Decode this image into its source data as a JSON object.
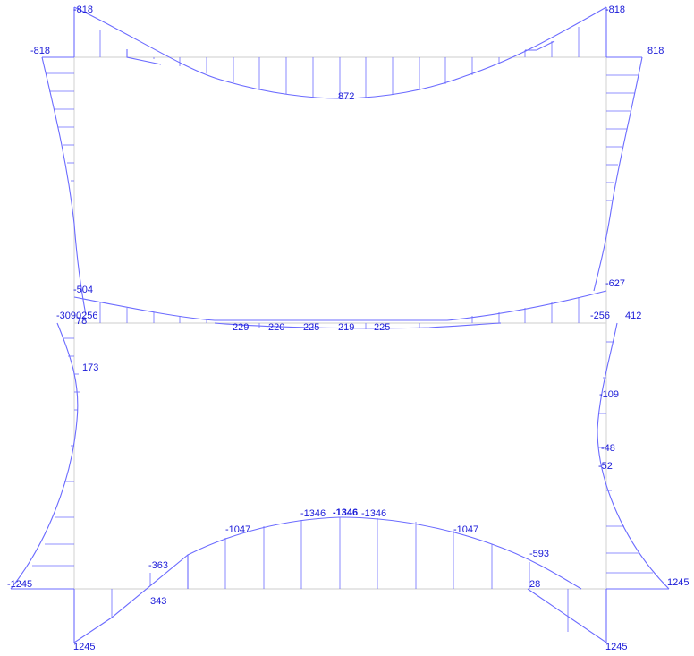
{
  "diagram": {
    "colors": {
      "frame": "#d8d8d8",
      "curve": "#6b6bff",
      "label": "#1a1ad8"
    },
    "labels": {
      "top_left_column_end": "-818",
      "top_right_column_end": "-818",
      "top_left_beam_end": "-818",
      "top_right_beam_end": "818",
      "top_beam_mid": "872",
      "mid_left_upper": "-504",
      "mid_left_cluster": "-3090256",
      "mid_left_small": "78",
      "mid_right_upper": "-627",
      "mid_right_lower": "-256",
      "mid_right_column": "412",
      "mid_beam_1": "229",
      "mid_beam_2": "220",
      "mid_beam_3": "225",
      "mid_beam_4": "219",
      "mid_beam_5": "225",
      "left_lower_column": "173",
      "right_lower_1": "-109",
      "right_lower_2": "-48",
      "right_lower_3": "-52",
      "bottom_left_end": "-1245",
      "bottom_right_end": "1245",
      "bottom_left_base": "1245",
      "bottom_right_base": "1245",
      "bottom_left_upper": "-363",
      "bottom_left_lower": "343",
      "bottom_peak_left": "-1047",
      "bottom_peak_right": "-1047",
      "bottom_top_left": "-1346",
      "bottom_top_cluster": "-1346",
      "bottom_top_right": "-1346",
      "bottom_right_upper": "-593",
      "bottom_right_lower": "28"
    }
  }
}
